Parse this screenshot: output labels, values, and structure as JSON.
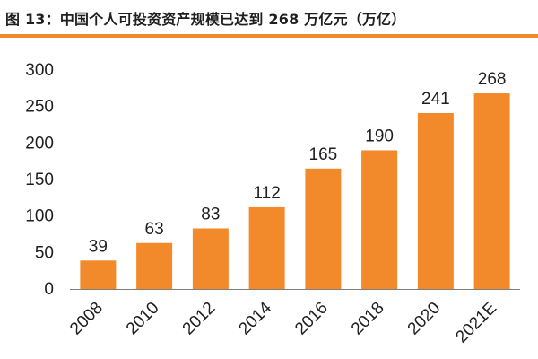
{
  "figure": {
    "title": "图 13：中国个人可投资资产规模已达到 268 万亿元（万亿）"
  },
  "colors": {
    "bar": "#f28a2b",
    "accent_rule": "#f28a2b",
    "axis": "#7f7f7f",
    "text": "#1f1f1f"
  },
  "chart_data": {
    "type": "bar",
    "title": "",
    "xlabel": "",
    "ylabel": "",
    "categories": [
      "2008",
      "2010",
      "2012",
      "2014",
      "2016",
      "2018",
      "2020",
      "2021E"
    ],
    "values": [
      39,
      63,
      83,
      112,
      165,
      190,
      241,
      268
    ],
    "data_labels": [
      "39",
      "63",
      "83",
      "112",
      "165",
      "190",
      "241",
      "268"
    ],
    "ylim": [
      0,
      300
    ],
    "yticks": [
      0,
      50,
      100,
      150,
      200,
      250,
      300
    ],
    "grid": false,
    "legend": "none"
  }
}
